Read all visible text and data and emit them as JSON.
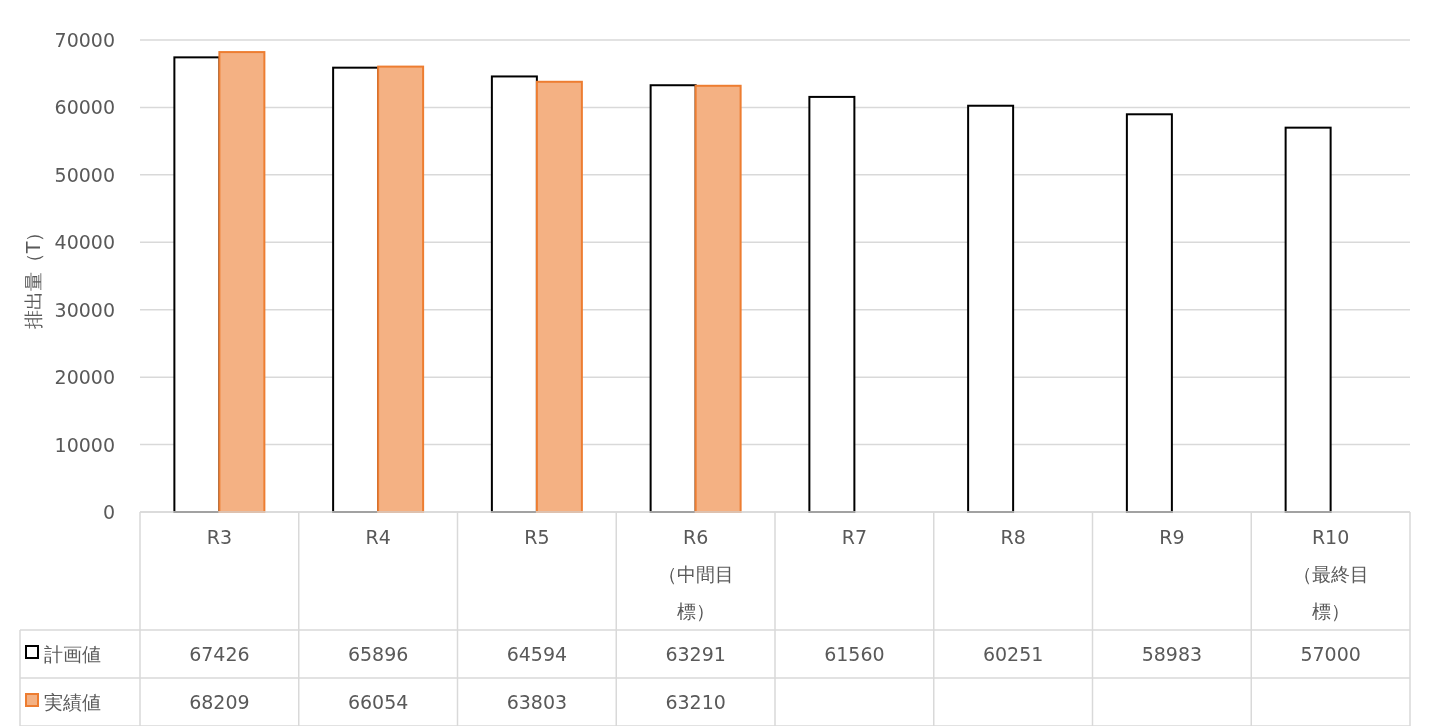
{
  "chart_data": {
    "type": "bar",
    "ylabel": "排出量（T）",
    "categories": [
      "R3",
      "R4",
      "R5",
      "R6（中間目標）",
      "R7",
      "R8",
      "R9",
      "R10（最終目標）"
    ],
    "series": [
      {
        "name": "計画値",
        "color": "#ffffff",
        "values": [
          67426,
          65896,
          64594,
          63291,
          61560,
          60251,
          58983,
          57000
        ]
      },
      {
        "name": "実績値",
        "color": "#f4b183",
        "values": [
          68209,
          66054,
          63803,
          63210,
          null,
          null,
          null,
          null
        ]
      }
    ],
    "ylim": [
      0,
      70000
    ],
    "yticks": [
      0,
      10000,
      20000,
      30000,
      40000,
      50000,
      60000,
      70000
    ],
    "grid": "y",
    "legend": "bottom",
    "data_labels": true
  }
}
